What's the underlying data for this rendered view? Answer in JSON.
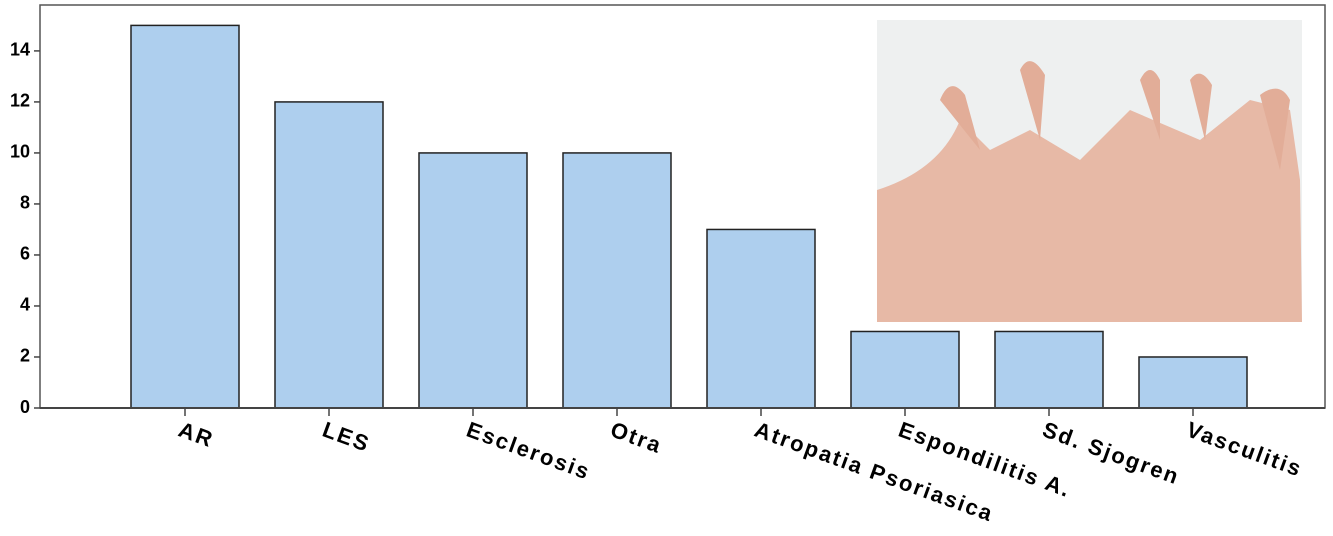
{
  "chart_data": {
    "type": "bar",
    "categories": [
      "AR",
      "LES",
      "Esclerosis",
      "Otra",
      "Atropatia Psoriasica",
      "Espondilitis A.",
      "Sd. Sjogren",
      "Vasculitis"
    ],
    "values": [
      15,
      12,
      10,
      10,
      7,
      3,
      3,
      2
    ],
    "color": "#aecfee",
    "ylim": [
      0,
      15.8
    ],
    "yticks": [
      0,
      2,
      4,
      6,
      8,
      10,
      12,
      14
    ]
  }
}
